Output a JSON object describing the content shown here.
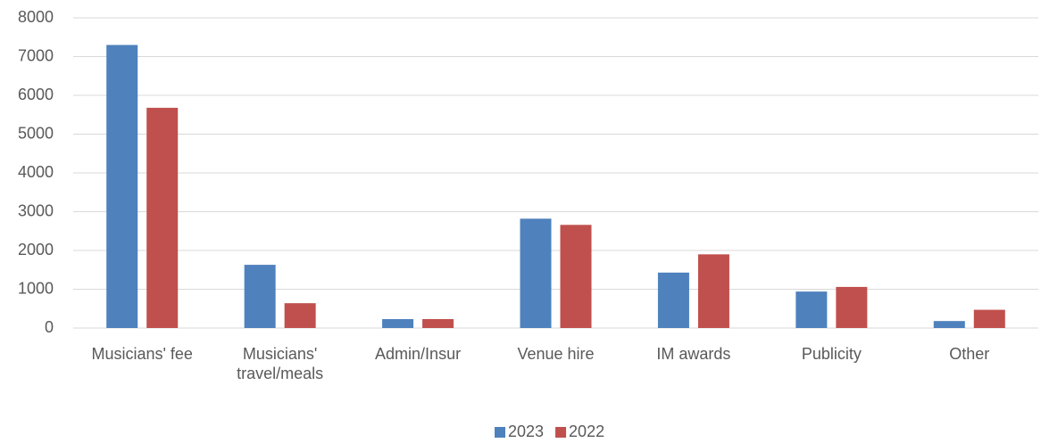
{
  "chart_data": {
    "type": "bar",
    "categories": [
      "Musicians' fee",
      "Musicians' travel/meals",
      "Admin/Insur",
      "Venue hire",
      "IM awards",
      "Publicity",
      "Other"
    ],
    "series": [
      {
        "name": "2023",
        "color": "#4f81bd",
        "values": [
          7300,
          1630,
          230,
          2820,
          1430,
          940,
          180
        ]
      },
      {
        "name": "2022",
        "color": "#c0504d",
        "values": [
          5680,
          640,
          230,
          2660,
          1900,
          1060,
          470
        ]
      }
    ],
    "ylim": [
      0,
      8000
    ],
    "yticks": [
      0,
      1000,
      2000,
      3000,
      4000,
      5000,
      6000,
      7000,
      8000
    ],
    "grid": true,
    "legend": "bottom"
  }
}
